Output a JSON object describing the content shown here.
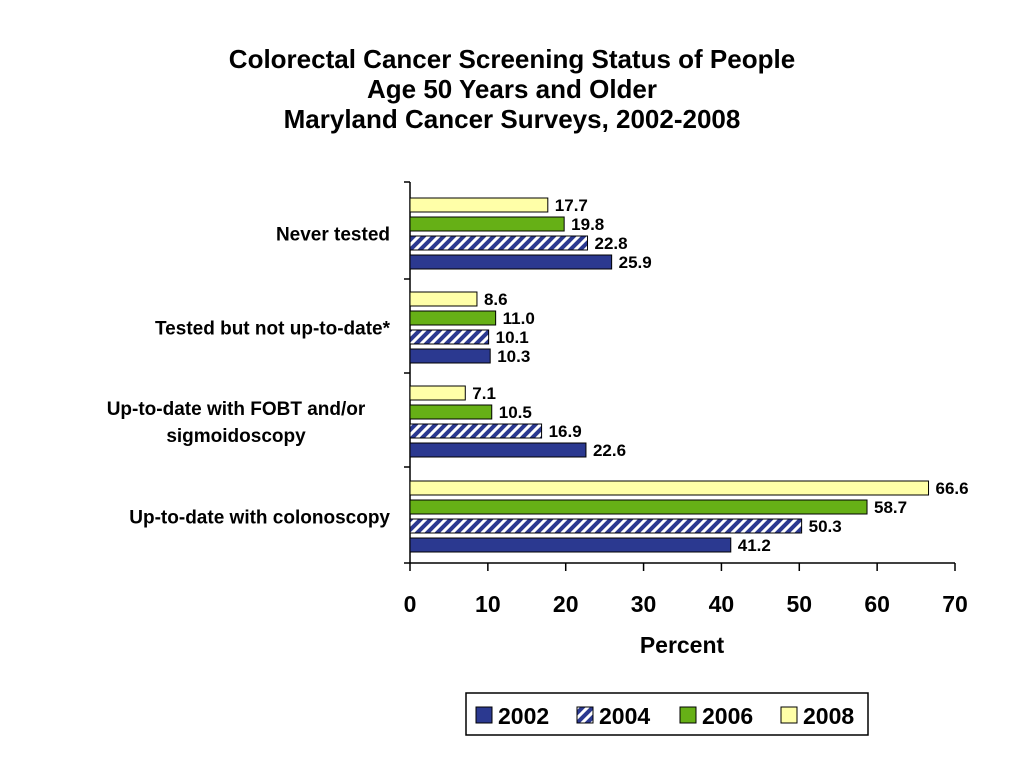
{
  "chart_data": {
    "type": "bar",
    "orientation": "horizontal",
    "title_lines": [
      "Colorectal Cancer Screening Status of People",
      "Age 50 Years and Older",
      "Maryland Cancer Surveys, 2002-2008"
    ],
    "xlabel": "Percent",
    "xlim": [
      0,
      70
    ],
    "xticks": [
      0,
      10,
      20,
      30,
      40,
      50,
      60,
      70
    ],
    "categories": [
      [
        "Never tested"
      ],
      [
        "Tested but not up-to-date*"
      ],
      [
        "Up-to-date with FOBT and/or",
        "sigmoidoscopy"
      ],
      [
        "Up-to-date with colonoscopy"
      ]
    ],
    "series": [
      {
        "name": "2002",
        "values": [
          25.9,
          10.3,
          22.6,
          41.2
        ],
        "labels": [
          "25.9",
          "10.3",
          "22.6",
          "41.2"
        ],
        "color": "#2B3990",
        "pattern": "solid"
      },
      {
        "name": "2004",
        "values": [
          22.8,
          10.1,
          16.9,
          50.3
        ],
        "labels": [
          "22.8",
          "10.1",
          "16.9",
          "50.3"
        ],
        "color": "#2B3990",
        "pattern": "hatch"
      },
      {
        "name": "2006",
        "values": [
          19.8,
          11.0,
          10.5,
          58.7
        ],
        "labels": [
          "19.8",
          "11.0",
          "10.5",
          "58.7"
        ],
        "color": "#66B016",
        "pattern": "solid"
      },
      {
        "name": "2008",
        "values": [
          17.7,
          8.6,
          7.1,
          66.6
        ],
        "labels": [
          "17.7",
          "8.6",
          "7.1",
          "66.6"
        ],
        "color": "#FFFFA8",
        "pattern": "solid"
      }
    ],
    "legend_position": "bottom-right",
    "grid": false
  }
}
